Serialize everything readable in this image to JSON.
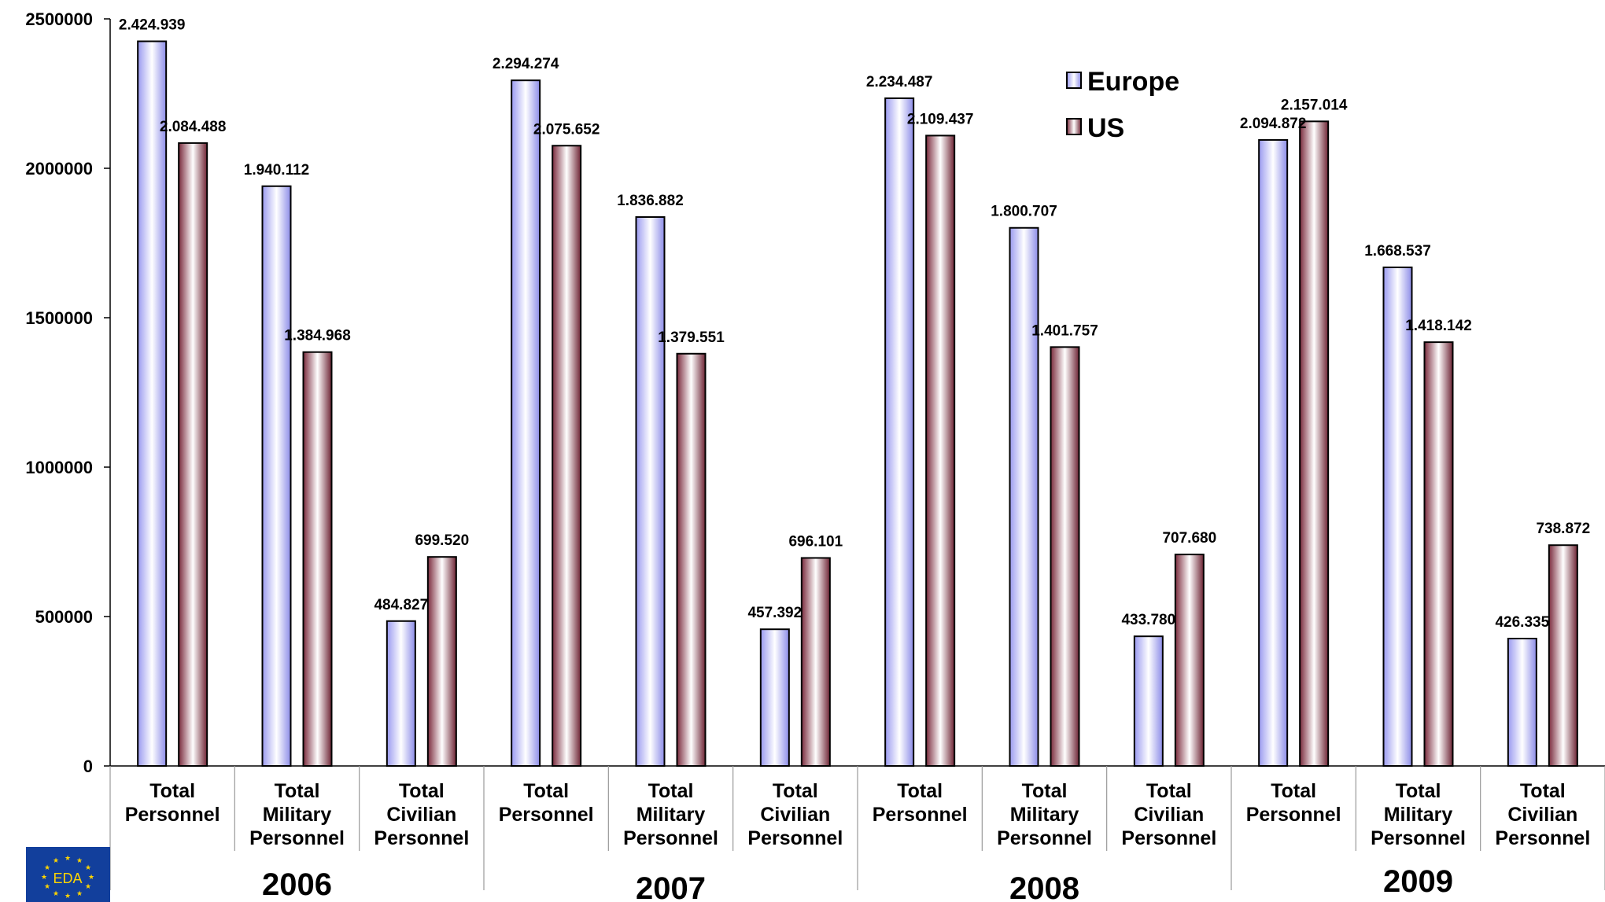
{
  "chart_data": {
    "type": "bar",
    "title": "",
    "xlabel": "",
    "ylabel": "",
    "ylim": [
      0,
      2500000
    ],
    "yticks": [
      0,
      500000,
      1000000,
      1500000,
      2000000,
      2500000
    ],
    "ytick_labels": [
      "0",
      "500000",
      "1000000",
      "1500000",
      "2000000",
      "2500000"
    ],
    "grid": false,
    "legend_position": "top-center",
    "groups": [
      "2006",
      "2007",
      "2008",
      "2009"
    ],
    "category_labels": [
      [
        "Total",
        "Personnel"
      ],
      [
        "Total",
        "Military",
        "Personnel"
      ],
      [
        "Total",
        "Civilian",
        "Personnel"
      ]
    ],
    "categories": [
      "Total Personnel 2006",
      "Total Military Personnel 2006",
      "Total Civilian Personnel 2006",
      "Total Personnel 2007",
      "Total Military Personnel 2007",
      "Total Civilian Personnel 2007",
      "Total Personnel 2008",
      "Total Military Personnel 2008",
      "Total Civilian Personnel 2008",
      "Total Personnel 2009",
      "Total Military Personnel 2009",
      "Total Civilian Personnel 2009"
    ],
    "series": [
      {
        "name": "Europe",
        "color": "#c8c8ff",
        "values": [
          2424939,
          1940112,
          484827,
          2294274,
          1836882,
          457392,
          2234487,
          1800707,
          433780,
          2094872,
          1668537,
          426335
        ],
        "labels": [
          "2.424.939",
          "1.940.112",
          "484.827",
          "2.294.274",
          "1.836.882",
          "457.392",
          "2.234.487",
          "1.800.707",
          "433.780",
          "2.094.872",
          "1.668.537",
          "426.335"
        ]
      },
      {
        "name": "US",
        "color": "#8a3a4a",
        "values": [
          2084488,
          1384968,
          699520,
          2075652,
          1379551,
          696101,
          2109437,
          1401757,
          707680,
          2157014,
          1418142,
          738872
        ],
        "labels": [
          "2.084.488",
          "1.384.968",
          "699.520",
          "2.075.652",
          "1.379.551",
          "696.101",
          "2.109.437",
          "1.401.757",
          "707.680",
          "2.157.014",
          "1.418.142",
          "738.872"
        ]
      }
    ]
  },
  "logo": {
    "text": "EDA"
  }
}
